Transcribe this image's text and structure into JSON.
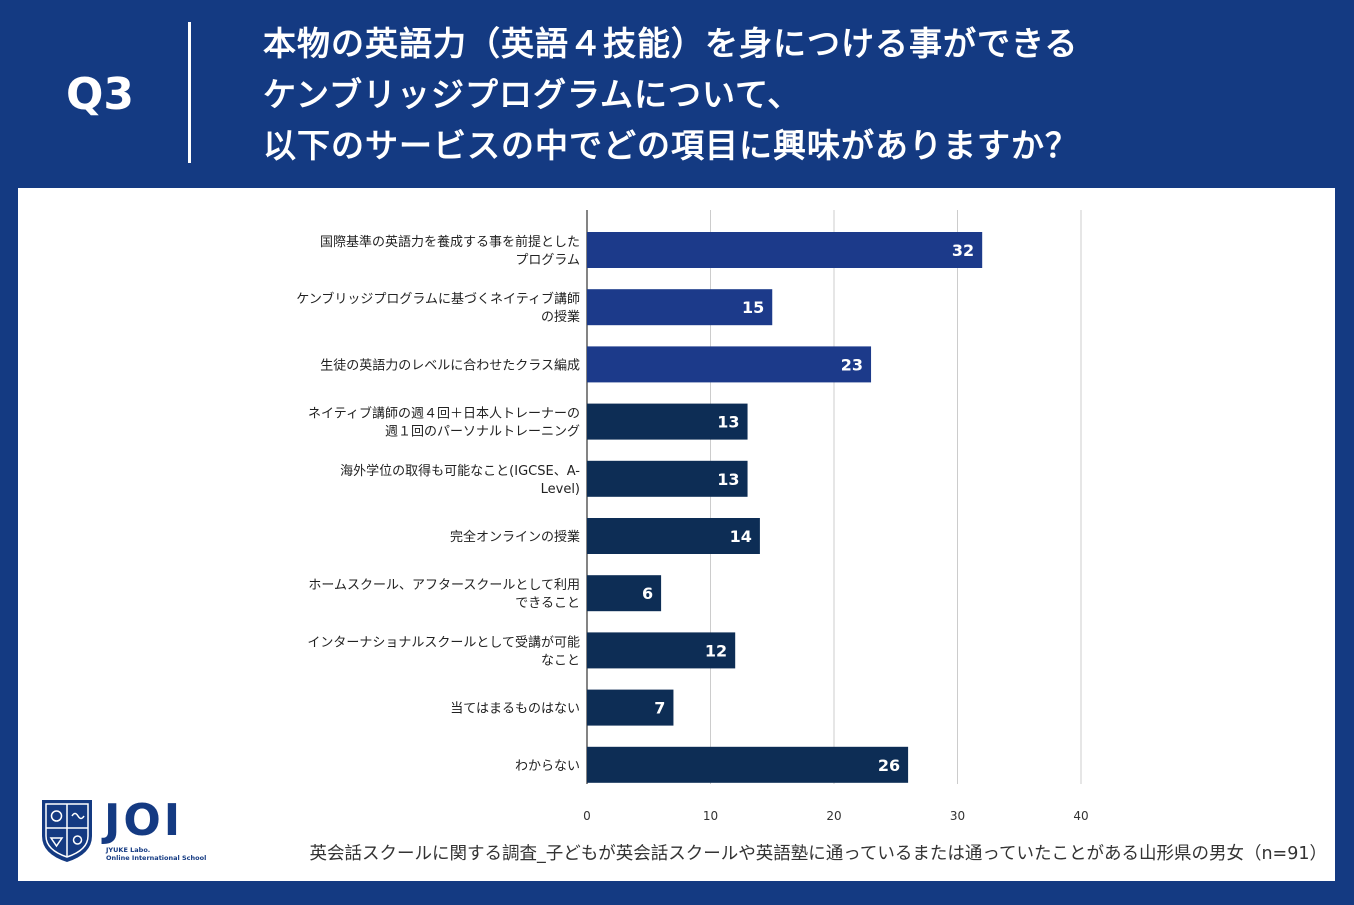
{
  "header": {
    "question_label": "Q3",
    "title_lines": [
      "本物の英語力（英語４技能）を身につける事ができる",
      "ケンブリッジプログラムについて、",
      "以下のサービスの中でどの項目に興味がありますか？"
    ]
  },
  "colors": {
    "background": "#143a82",
    "bar_primary": "#1c3a8a",
    "bar_secondary": "#0d2d55",
    "grid": "#cccccc"
  },
  "chart_data": {
    "type": "bar",
    "orientation": "horizontal",
    "categories": [
      [
        "国際基準の英語力を養成する事を前提とした",
        "プログラム"
      ],
      [
        "ケンブリッジプログラムに基づくネイティブ講師",
        "の授業"
      ],
      [
        "生徒の英語力のレベルに合わせたクラス編成"
      ],
      [
        "ネイティブ講師の週４回＋日本人トレーナーの",
        "週１回のパーソナルトレーニング"
      ],
      [
        "海外学位の取得も可能なこと(IGCSE、A-",
        "Level)"
      ],
      [
        "完全オンラインの授業"
      ],
      [
        "ホームスクール、アフタースクールとして利用",
        "できること"
      ],
      [
        "インターナショナルスクールとして受講が可能",
        "なこと"
      ],
      [
        "当てはまるものはない"
      ],
      [
        "わからない"
      ]
    ],
    "values": [
      32,
      15,
      23,
      13,
      13,
      14,
      6,
      12,
      7,
      26
    ],
    "value_labels": [
      "32",
      "15",
      "23",
      "13",
      "13",
      "14",
      "6",
      "12",
      "7",
      "26"
    ],
    "color_groups": [
      "primary",
      "primary",
      "primary",
      "secondary",
      "secondary",
      "secondary",
      "secondary",
      "secondary",
      "secondary",
      "secondary"
    ],
    "xlim": [
      0,
      40
    ],
    "xticks": [
      "0",
      "10",
      "20",
      "30",
      "40"
    ],
    "grid": true,
    "title": "",
    "xlabel": "",
    "ylabel": ""
  },
  "logo": {
    "text": "JOI",
    "sub_line1": "JYUKE Labo.",
    "sub_line2": "Online International School"
  },
  "footnote": "英会話スクールに関する調査_子どもが英会話スクールや英語塾に通っているまたは通っていたことがある山形県の男女（n=91）"
}
